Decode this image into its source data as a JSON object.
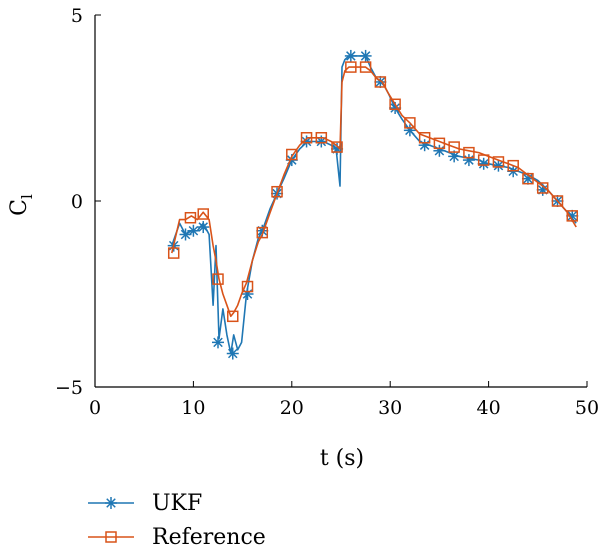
{
  "chart_data": {
    "type": "line",
    "xlabel": "t (s)",
    "ylabel_main": "C",
    "ylabel_sub": "l",
    "xlim": [
      0,
      50
    ],
    "ylim": [
      -5,
      5
    ],
    "xticks": [
      0,
      10,
      20,
      30,
      40,
      50
    ],
    "yticks": [
      -5,
      0,
      5
    ],
    "xtick_labels": [
      "0",
      "10",
      "20",
      "30",
      "40",
      "50"
    ],
    "ytick_labels": [
      "−5",
      "0",
      "5"
    ],
    "grid": false,
    "legend_position": "below-left",
    "series": [
      {
        "name": "UKF",
        "color": "#1f77b4",
        "marker": "asterisk",
        "x": [
          7.8,
          8.6,
          9.2,
          9.8,
          10.4,
          11.0,
          11.6,
          12.0,
          12.3,
          12.6,
          13.0,
          13.4,
          13.8,
          14.1,
          14.5,
          14.9,
          15.4,
          16.0,
          16.6,
          17.0,
          17.8,
          18.5,
          19.2,
          20.0,
          20.8,
          21.6,
          22.4,
          23.2,
          24.0,
          24.5,
          24.9,
          25.1,
          25.4,
          25.8,
          26.4,
          27.0,
          27.5,
          28.0,
          28.6,
          29.2,
          29.8,
          30.5,
          31.2,
          32.0,
          33.0,
          34.0,
          35.0,
          36.0,
          37.0,
          38.0,
          39.0,
          40.0,
          41.0,
          42.0,
          43.0,
          44.0,
          45.0,
          46.0,
          47.0,
          48.0,
          48.9
        ],
        "y": [
          -1.2,
          -0.6,
          -0.9,
          -0.8,
          -0.8,
          -0.6,
          -0.9,
          -2.8,
          -1.2,
          -3.7,
          -2.9,
          -3.6,
          -4.1,
          -3.6,
          -4.0,
          -3.8,
          -2.5,
          -1.6,
          -1.0,
          -0.8,
          -0.2,
          0.2,
          0.6,
          1.1,
          1.4,
          1.6,
          1.6,
          1.6,
          1.5,
          1.4,
          0.4,
          3.6,
          3.8,
          3.9,
          3.9,
          3.9,
          3.9,
          3.6,
          3.3,
          3.2,
          2.9,
          2.5,
          2.2,
          1.9,
          1.6,
          1.5,
          1.4,
          1.3,
          1.2,
          1.15,
          1.1,
          1.0,
          0.95,
          0.9,
          0.8,
          0.7,
          0.55,
          0.3,
          0.0,
          -0.3,
          -0.6
        ],
        "marker_x": [
          8.0,
          9.2,
          10.0,
          11.0,
          12.5,
          14.0,
          15.5,
          17.0,
          18.5,
          20.0,
          21.5,
          23.0,
          24.6,
          26.0,
          27.5,
          29.0,
          30.5,
          32.0,
          33.5,
          35.0,
          36.5,
          38.0,
          39.5,
          41.0,
          42.5,
          44.0,
          45.5,
          47.0,
          48.5
        ],
        "marker_y": [
          -1.2,
          -0.9,
          -0.8,
          -0.7,
          -3.8,
          -4.1,
          -2.5,
          -0.8,
          0.2,
          1.1,
          1.6,
          1.6,
          1.4,
          3.9,
          3.9,
          3.2,
          2.5,
          1.9,
          1.5,
          1.35,
          1.2,
          1.1,
          1.0,
          0.95,
          0.8,
          0.6,
          0.3,
          0.0,
          -0.4
        ]
      },
      {
        "name": "Reference",
        "color": "#d95319",
        "marker": "square",
        "x": [
          7.8,
          8.6,
          9.2,
          9.8,
          10.4,
          11.0,
          11.6,
          12.0,
          12.3,
          12.6,
          13.0,
          13.4,
          13.8,
          14.1,
          14.5,
          14.9,
          15.4,
          16.0,
          16.6,
          17.0,
          17.8,
          18.5,
          19.2,
          20.0,
          20.8,
          21.6,
          22.4,
          23.2,
          24.0,
          24.5,
          24.9,
          25.1,
          25.4,
          25.8,
          26.4,
          27.0,
          27.5,
          28.0,
          28.6,
          29.2,
          29.8,
          30.5,
          31.2,
          32.0,
          33.0,
          34.0,
          35.0,
          36.0,
          37.0,
          38.0,
          39.0,
          40.0,
          41.0,
          42.0,
          43.0,
          44.0,
          45.0,
          46.0,
          47.0,
          48.0,
          48.9
        ],
        "y": [
          -1.4,
          -0.5,
          -0.5,
          -0.4,
          -0.5,
          -0.3,
          -0.5,
          -1.2,
          -1.6,
          -2.1,
          -2.5,
          -2.8,
          -3.1,
          -3.0,
          -2.8,
          -2.5,
          -2.2,
          -1.6,
          -1.1,
          -0.9,
          -0.3,
          0.2,
          0.7,
          1.2,
          1.5,
          1.7,
          1.7,
          1.7,
          1.6,
          1.5,
          1.4,
          3.2,
          3.5,
          3.6,
          3.6,
          3.6,
          3.6,
          3.5,
          3.3,
          3.2,
          2.9,
          2.6,
          2.3,
          2.1,
          1.8,
          1.7,
          1.6,
          1.5,
          1.4,
          1.35,
          1.3,
          1.2,
          1.1,
          1.0,
          0.9,
          0.7,
          0.5,
          0.3,
          0.0,
          -0.3,
          -0.7
        ],
        "marker_x": [
          8.0,
          9.7,
          11.0,
          12.5,
          14.0,
          15.5,
          17.0,
          18.5,
          20.0,
          21.5,
          23.0,
          24.6,
          26.0,
          27.5,
          29.0,
          30.5,
          32.0,
          33.5,
          35.0,
          36.5,
          38.0,
          39.5,
          41.0,
          42.5,
          44.0,
          45.5,
          47.0,
          48.5
        ],
        "marker_y": [
          -1.4,
          -0.45,
          -0.35,
          -2.1,
          -3.1,
          -2.3,
          -0.85,
          0.25,
          1.25,
          1.7,
          1.7,
          1.45,
          3.6,
          3.6,
          3.2,
          2.6,
          2.1,
          1.7,
          1.55,
          1.45,
          1.3,
          1.1,
          1.05,
          0.95,
          0.6,
          0.35,
          0.0,
          -0.4
        ]
      }
    ]
  }
}
